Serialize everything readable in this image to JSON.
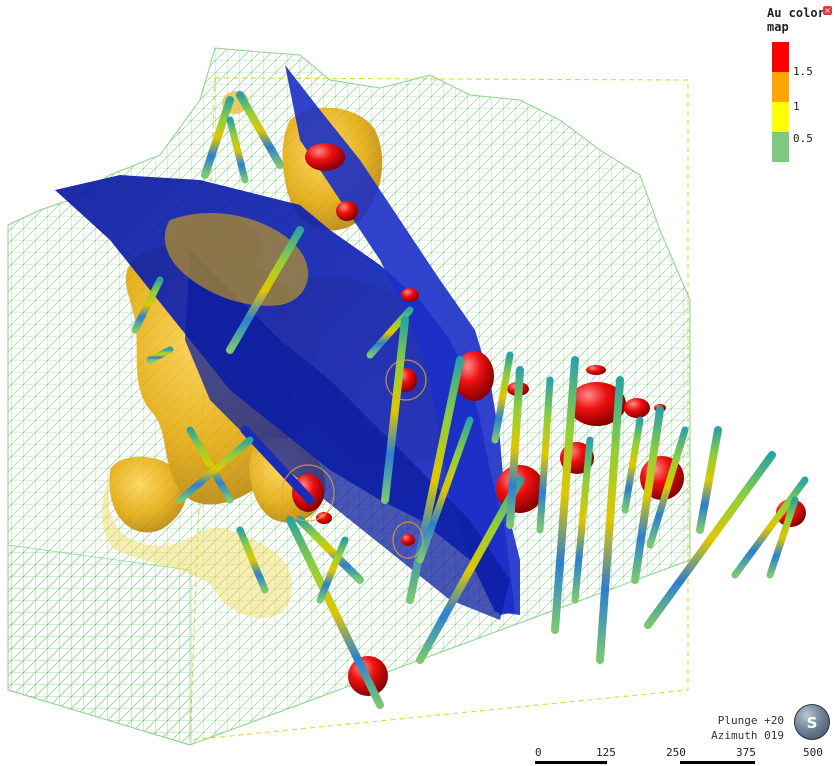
{
  "legend": {
    "title": "Au color map",
    "close_icon": "close-icon",
    "entries": [
      {
        "label": "1.5",
        "color": "#ff0000"
      },
      {
        "label": "1",
        "color": "#ffa500"
      },
      {
        "label": "0.5",
        "color": "#ffff00"
      },
      {
        "label": "",
        "color": "#7fc97f"
      }
    ]
  },
  "orientation": {
    "plunge": "Plunge +20",
    "azimuth": "Azimuth 019",
    "compass_letter": "S",
    "compass_icon": "compass-icon"
  },
  "scale_bar": {
    "ticks": [
      "0",
      "125",
      "250",
      "375",
      "500"
    ]
  },
  "scene": {
    "mesh_color": "#6cc26c",
    "fault_color": "#1020a8",
    "shell_color": "#e8b800",
    "bounding_box_color": "#e8d64a",
    "hotspot_color": "#e01010"
  }
}
